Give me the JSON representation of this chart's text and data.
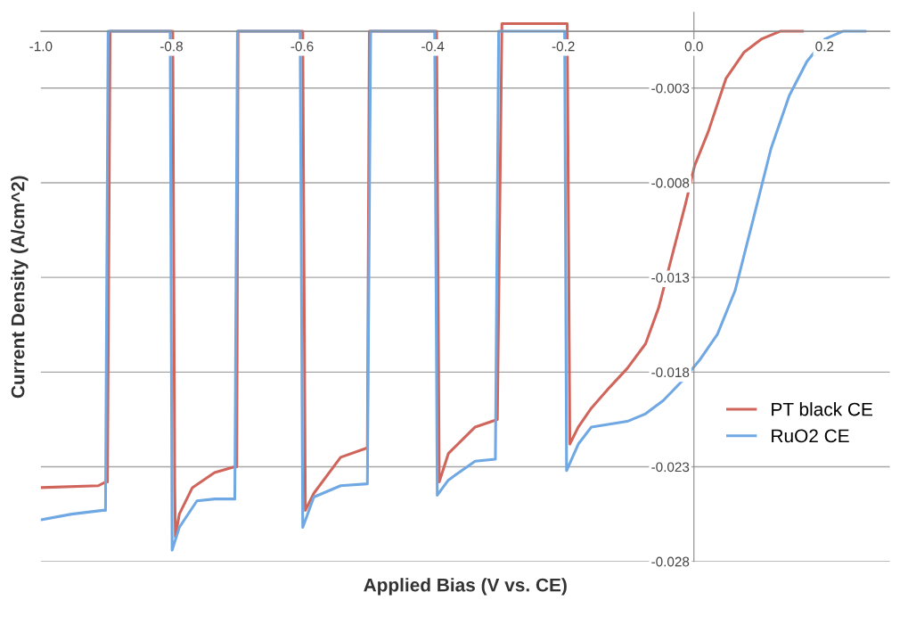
{
  "chart_data": {
    "type": "line",
    "xlabel": "Applied Bias (V vs. CE)",
    "ylabel": "Current Density (A/cm^2)",
    "xlim": [
      -1.0,
      0.3
    ],
    "xticks": [
      {
        "value": -1.0,
        "label": "-1.0"
      },
      -0.8,
      -0.6,
      -0.4,
      -0.2,
      {
        "value": 0.0,
        "label": "0.0"
      },
      0.2
    ],
    "ylim": [
      -0.028,
      0.001
    ],
    "yticks": [
      -0.028,
      -0.023,
      -0.018,
      -0.013,
      -0.008,
      -0.003,
      {
        "value": 0,
        "label": null
      }
    ],
    "grid": "y",
    "legend": "right",
    "line_style": "solid",
    "marker": "none",
    "series": [
      {
        "name": "PT black CE",
        "color": "#d0655c",
        "x": [
          -1.0,
          -0.912,
          -0.901,
          -0.898,
          -0.894,
          -0.798,
          -0.795,
          -0.794,
          -0.788,
          -0.768,
          -0.734,
          -0.703,
          -0.7,
          -0.698,
          -0.599,
          -0.595,
          -0.582,
          -0.541,
          -0.5,
          -0.497,
          -0.394,
          -0.39,
          -0.376,
          -0.335,
          -0.301,
          -0.294,
          -0.287,
          -0.194,
          -0.19,
          -0.177,
          -0.157,
          -0.129,
          -0.102,
          -0.074,
          -0.054,
          -0.033,
          -0.012,
          0.001,
          0.022,
          0.049,
          0.077,
          0.104,
          0.132,
          0.166
        ],
        "values": [
          -0.0241,
          -0.024,
          -0.0238,
          -0.0238,
          0,
          0,
          -0.0241,
          -0.0267,
          -0.0255,
          -0.0241,
          -0.0233,
          -0.023,
          -0.023,
          0,
          0,
          -0.0253,
          -0.0244,
          -0.0225,
          -0.022,
          0,
          0,
          -0.0238,
          -0.0223,
          -0.0209,
          -0.0205,
          0.0004,
          0.0004,
          0.0004,
          -0.0218,
          -0.0209,
          -0.0199,
          -0.0188,
          -0.0178,
          -0.0165,
          -0.0146,
          -0.0118,
          -0.009,
          -0.0071,
          -0.0053,
          -0.0025,
          -0.0011,
          -0.0004,
          0,
          0
        ]
      },
      {
        "name": "RuO2 CE",
        "color": "#6fa8e2",
        "x": [
          -1.0,
          -0.953,
          -0.905,
          -0.901,
          -0.897,
          -0.802,
          -0.799,
          -0.788,
          -0.761,
          -0.734,
          -0.703,
          -0.699,
          -0.603,
          -0.599,
          -0.582,
          -0.541,
          -0.5,
          -0.495,
          -0.397,
          -0.393,
          -0.376,
          -0.335,
          -0.304,
          -0.299,
          -0.198,
          -0.195,
          -0.177,
          -0.157,
          -0.102,
          -0.074,
          -0.047,
          -0.019,
          0.008,
          0.036,
          0.063,
          0.091,
          0.118,
          0.146,
          0.173,
          0.201,
          0.228,
          0.262
        ],
        "values": [
          -0.0258,
          -0.0255,
          -0.0253,
          -0.0253,
          0,
          0,
          -0.0274,
          -0.0262,
          -0.0248,
          -0.0247,
          -0.0247,
          0,
          0,
          -0.0262,
          -0.0246,
          -0.024,
          -0.0239,
          0,
          0,
          -0.0245,
          -0.0237,
          -0.0227,
          -0.0226,
          0,
          0,
          -0.0232,
          -0.0218,
          -0.0209,
          -0.0206,
          -0.0202,
          -0.0195,
          -0.0185,
          -0.0174,
          -0.016,
          -0.0137,
          -0.0099,
          -0.0062,
          -0.0034,
          -0.0016,
          -0.0004,
          0,
          0
        ]
      }
    ]
  }
}
